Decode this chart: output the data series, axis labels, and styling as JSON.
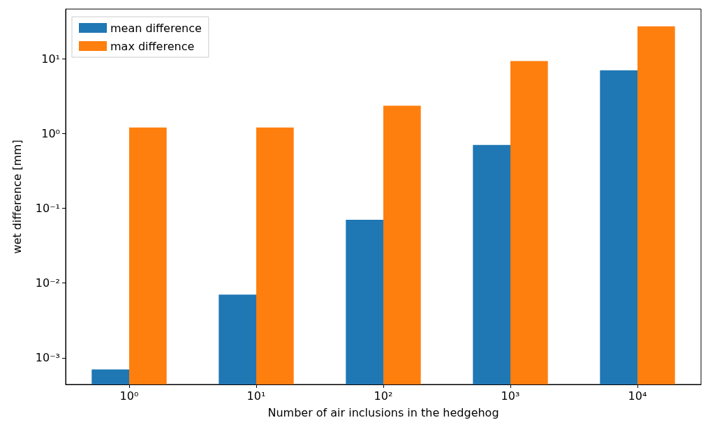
{
  "chart_data": {
    "type": "bar",
    "xlabel": "Number of air inclusions in the hedgehog",
    "ylabel": "wet difference [mm]",
    "categories": [
      "10⁰",
      "10¹",
      "10²",
      "10³",
      "10⁴"
    ],
    "series": [
      {
        "name": "mean difference",
        "color": "#1f77b4",
        "values": [
          0.0007,
          0.007,
          0.07,
          0.7,
          7
        ]
      },
      {
        "name": "max difference",
        "color": "#ff7f0e",
        "values": [
          1.2,
          1.2,
          2.35,
          9.3,
          27
        ]
      }
    ],
    "log": "y",
    "ylim": [
      0.00044,
      46
    ],
    "yticks": [
      {
        "value": 0.001,
        "label": "10⁻³"
      },
      {
        "value": 0.01,
        "label": "10⁻²"
      },
      {
        "value": 0.1,
        "label": "10⁻¹"
      },
      {
        "value": 1,
        "label": "10⁰"
      },
      {
        "value": 10,
        "label": "10¹"
      }
    ],
    "grid": false,
    "legend": "top left"
  }
}
